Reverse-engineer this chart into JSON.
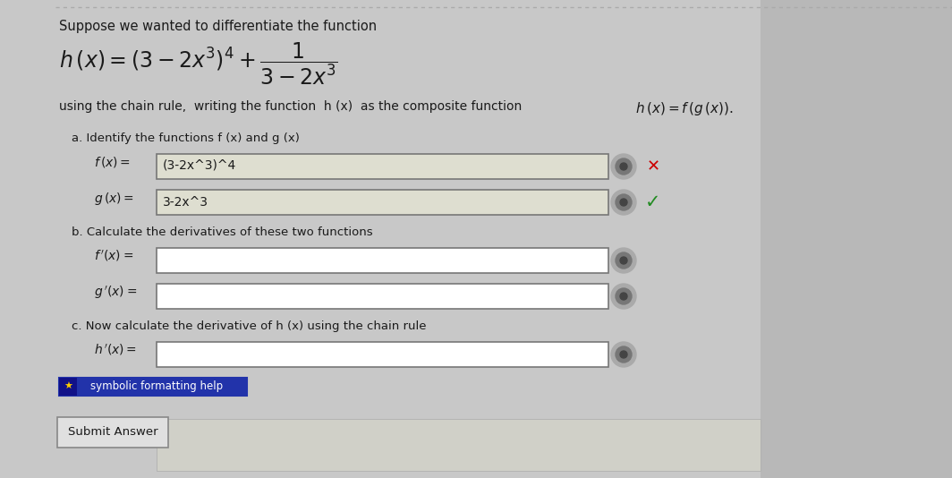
{
  "bg_color": "#c8c8c8",
  "white": "#ffffff",
  "dark_text": "#1a1a1a",
  "title_line": "Suppose we wanted to differentiate the function",
  "fx_value": "(3-2x^3)^4",
  "gx_value": "3-2x^3",
  "part_a": "a. Identify the functions f (x) and g (x)",
  "part_b": "b. Calculate the derivatives of these two functions",
  "part_c": "c. Now calculate the derivative of h (x) using the chain rule",
  "symbolic_help": "symbolic formatting help",
  "submit_btn": "Submit Answer",
  "x_mark_color": "#cc0000",
  "check_mark_color": "#228B22",
  "input_border": "#777777",
  "filled_bg": "#deded0",
  "right_panel_color": "#b8b8b8",
  "bottom_box_color": "#d0d0c8"
}
